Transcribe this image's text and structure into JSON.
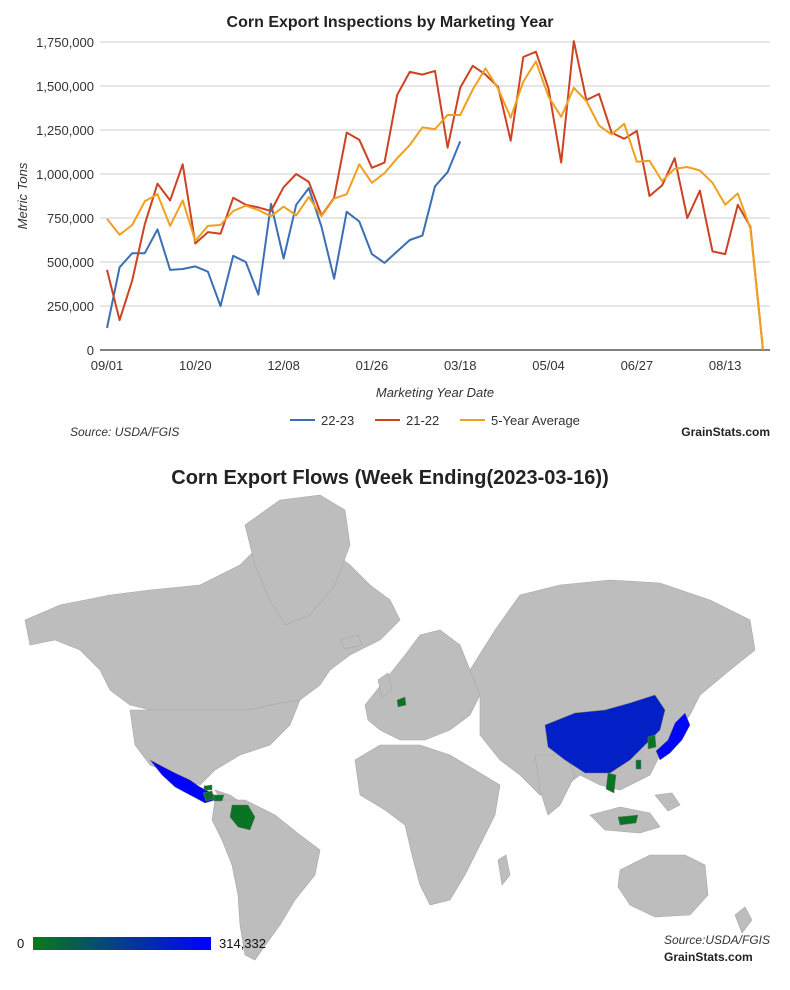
{
  "chart_data": [
    {
      "type": "line",
      "title": "Corn Export Inspections by Marketing Year",
      "xlabel": "Marketing Year Date",
      "ylabel": "Metric Tons",
      "ylim": [
        0,
        1750000
      ],
      "yticks": [
        "0",
        "250,000",
        "500,000",
        "750,000",
        "1,000,000",
        "1,250,000",
        "1,500,000",
        "1,750,000"
      ],
      "xticks": [
        {
          "week": 0,
          "label": "09/01"
        },
        {
          "week": 7,
          "label": "10/20"
        },
        {
          "week": 14,
          "label": "12/08"
        },
        {
          "week": 21,
          "label": "01/26"
        },
        {
          "week": 28,
          "label": "03/18"
        },
        {
          "week": 35,
          "label": "05/04"
        },
        {
          "week": 42,
          "label": "06/27"
        },
        {
          "week": 49,
          "label": "08/13"
        }
      ],
      "grid": true,
      "legend_position": "bottom",
      "source": "Source: USDA/FGIS",
      "brand": "GrainStats.com",
      "series": [
        {
          "name": "22-23",
          "color": "#3a6fb5",
          "values": [
            125000,
            470000,
            550000,
            550000,
            685000,
            455000,
            460000,
            475000,
            445000,
            250000,
            535000,
            500000,
            315000,
            830000,
            520000,
            825000,
            920000,
            700000,
            405000,
            785000,
            730000,
            545000,
            495000,
            560000,
            625000,
            650000,
            930000,
            1010000,
            1185000
          ]
        },
        {
          "name": "21-22",
          "color": "#cc4322",
          "values": [
            455000,
            170000,
            395000,
            715000,
            945000,
            850000,
            1055000,
            605000,
            670000,
            660000,
            865000,
            825000,
            810000,
            790000,
            925000,
            1000000,
            955000,
            765000,
            865000,
            1235000,
            1195000,
            1035000,
            1065000,
            1450000,
            1580000,
            1565000,
            1585000,
            1150000,
            1490000,
            1615000,
            1565000,
            1495000,
            1190000,
            1665000,
            1695000,
            1485000,
            1065000,
            1755000,
            1420000,
            1455000,
            1235000,
            1200000,
            1245000,
            875000,
            935000,
            1090000,
            750000,
            905000,
            560000,
            545000,
            825000,
            700000,
            0
          ]
        },
        {
          "name": "5-Year Average",
          "color": "#f0a020",
          "values": [
            745000,
            655000,
            710000,
            845000,
            885000,
            705000,
            850000,
            620000,
            705000,
            710000,
            790000,
            820000,
            795000,
            760000,
            815000,
            765000,
            870000,
            760000,
            860000,
            885000,
            1055000,
            950000,
            1005000,
            1090000,
            1165000,
            1265000,
            1255000,
            1335000,
            1335000,
            1480000,
            1600000,
            1485000,
            1320000,
            1525000,
            1640000,
            1440000,
            1325000,
            1490000,
            1415000,
            1275000,
            1225000,
            1285000,
            1070000,
            1075000,
            960000,
            1030000,
            1040000,
            1020000,
            950000,
            825000,
            890000,
            690000,
            0
          ]
        }
      ]
    },
    {
      "type": "heatmap",
      "title": "Corn Export Flows (Week Ending(2023-03-16))",
      "scale_min_label": "0",
      "scale_max_label": "314,332",
      "scale_colors": [
        "#0a7a1a",
        "#0000ff"
      ],
      "source": "Source:USDA/FGIS",
      "brand": "GrainStats.com",
      "regions": [
        {
          "name": "Mexico",
          "level": 1.0
        },
        {
          "name": "China",
          "level": 0.75
        },
        {
          "name": "Japan",
          "level": 0.95
        },
        {
          "name": "Colombia",
          "level": 0.05
        },
        {
          "name": "Guatemala",
          "level": 0.1
        },
        {
          "name": "Honduras",
          "level": 0.05
        },
        {
          "name": "South Korea",
          "level": 0.05
        },
        {
          "name": "Taiwan",
          "level": 0.1
        },
        {
          "name": "Netherlands",
          "level": 0.05
        },
        {
          "name": "Malaysia",
          "level": 0.05
        },
        {
          "name": "Vietnam",
          "level": 0.05
        },
        {
          "name": "Jamaica",
          "level": 0.05
        }
      ]
    }
  ]
}
